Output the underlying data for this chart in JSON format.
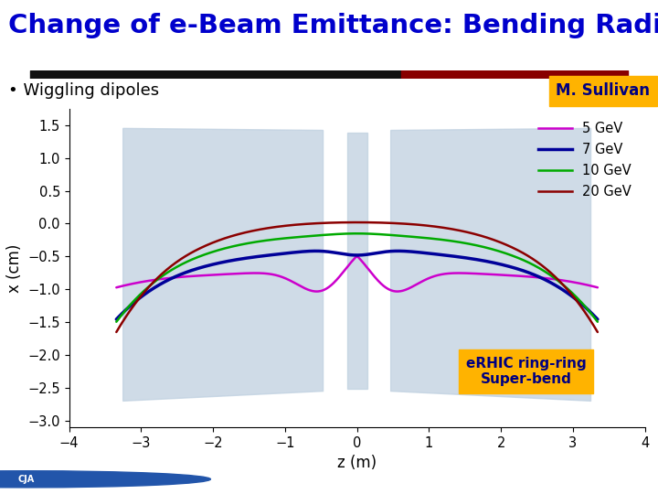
{
  "title": "Change of e-Beam Emittance: Bending Radius",
  "title_color": "#0000CC",
  "title_fontsize": 21,
  "subtitle": "• Wiggling dipoles",
  "subtitle_fontsize": 13,
  "sullivan_label": "M. Sullivan",
  "sullivan_bg": "#FFB300",
  "sullivan_color": "#000080",
  "xlabel": "z (m)",
  "ylabel": "x (cm)",
  "xlim": [
    -4,
    4
  ],
  "ylim": [
    -3.1,
    1.75
  ],
  "yticks": [
    -3,
    -2.5,
    -2,
    -1.5,
    -1,
    -0.5,
    0,
    0.5,
    1,
    1.5
  ],
  "xticks": [
    -4,
    -3,
    -2,
    -1,
    0,
    1,
    2,
    3,
    4
  ],
  "bg_color": "#FFFFFF",
  "plot_bg": "#FFFFFF",
  "shaded_region_color": "#BFD0E0",
  "shaded_alpha": 0.75,
  "annotation_label": "eRHIC ring-ring\nSuper-bend",
  "annotation_bg": "#FFB300",
  "annotation_color": "#000080",
  "curves": [
    {
      "label": "5 GeV",
      "color": "#CC00CC",
      "lw": 1.8,
      "energy": 5
    },
    {
      "label": "7 GeV",
      "color": "#000099",
      "lw": 2.5,
      "energy": 7
    },
    {
      "label": "10 GeV",
      "color": "#00AA00",
      "lw": 1.8,
      "energy": 10
    },
    {
      "label": "20 GeV",
      "color": "#8B0000",
      "lw": 1.8,
      "energy": 20
    }
  ]
}
